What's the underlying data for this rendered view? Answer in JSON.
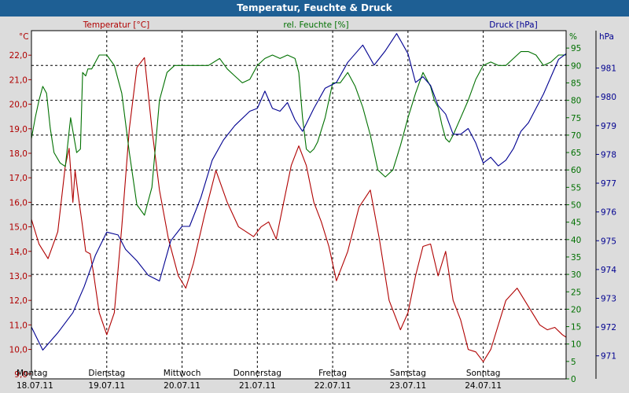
{
  "window_title": "Temperatur, Feuchte & Druck",
  "chart_data": {
    "type": "line",
    "title": "Temperatur, Feuchte & Druck",
    "x_range": [
      0,
      7.1
    ],
    "x_unit": "days",
    "x_ticks": [
      {
        "x": 0,
        "day": "Montag",
        "date": "18.07.11"
      },
      {
        "x": 1,
        "day": "Dienstag",
        "date": "19.07.11"
      },
      {
        "x": 2,
        "day": "Mittwoch",
        "date": "20.07.11"
      },
      {
        "x": 3,
        "day": "Donnerstag",
        "date": "21.07.11"
      },
      {
        "x": 4,
        "day": "Freitag",
        "date": "22.07.11"
      },
      {
        "x": 5,
        "day": "Samstag",
        "date": "23.07.11"
      },
      {
        "x": 6,
        "day": "Sonntag",
        "date": "24.07.11"
      }
    ],
    "grid": true,
    "axes": {
      "temperature": {
        "label": "Temperatur [°C]",
        "unit": "°C",
        "min": 8.8,
        "max": 23.0,
        "ticks": [
          "9,0",
          "10,0",
          "11,0",
          "12,0",
          "13,0",
          "14,0",
          "15,0",
          "16,0",
          "17,0",
          "18,0",
          "19,0",
          "20,0",
          "21,0",
          "22,0"
        ],
        "color": "#b00000"
      },
      "humidity": {
        "label": "rel. Feuchte [%]",
        "unit": "%",
        "min": 0,
        "max": 100,
        "ticks": [
          "0",
          "5",
          "10",
          "15",
          "20",
          "25",
          "30",
          "35",
          "40",
          "45",
          "50",
          "55",
          "60",
          "65",
          "70",
          "75",
          "80",
          "85",
          "90",
          "95"
        ],
        "color": "#007000"
      },
      "pressure": {
        "label": "Druck [hPa]",
        "unit": "hPa",
        "min": 970.2,
        "max": 982.3,
        "ticks": [
          "971",
          "972",
          "973",
          "974",
          "975",
          "976",
          "977",
          "978",
          "979",
          "980",
          "981"
        ],
        "color": "#000090"
      }
    },
    "series": [
      {
        "axis": "temperature",
        "color": "#b00000",
        "x": [
          0,
          0.1,
          0.22,
          0.35,
          0.45,
          0.5,
          0.55,
          0.58,
          0.62,
          0.67,
          0.72,
          0.78,
          0.82,
          0.9,
          1.0,
          1.1,
          1.2,
          1.3,
          1.4,
          1.5,
          1.6,
          1.7,
          1.82,
          1.95,
          2.05,
          2.15,
          2.3,
          2.45,
          2.6,
          2.75,
          2.85,
          2.95,
          3.05,
          3.15,
          3.25,
          3.35,
          3.45,
          3.55,
          3.65,
          3.75,
          3.85,
          3.95,
          4.05,
          4.2,
          4.35,
          4.5,
          4.62,
          4.75,
          4.9,
          5.0,
          5.1,
          5.2,
          5.3,
          5.4,
          5.5,
          5.6,
          5.7,
          5.8,
          5.9,
          6.0,
          6.1,
          6.2,
          6.3,
          6.45,
          6.55,
          6.65,
          6.75,
          6.85,
          6.95,
          7.05,
          7.1
        ],
        "values": [
          15.3,
          14.3,
          13.7,
          14.8,
          17.5,
          18.2,
          16.0,
          17.3,
          16.3,
          15.2,
          14.0,
          13.9,
          13.2,
          11.5,
          10.6,
          11.5,
          15.0,
          19.0,
          21.5,
          21.9,
          19.0,
          16.5,
          14.5,
          13.0,
          12.5,
          13.5,
          15.5,
          17.3,
          16.0,
          15.0,
          14.8,
          14.6,
          15.0,
          15.2,
          14.5,
          16.0,
          17.5,
          18.3,
          17.5,
          16.0,
          15.2,
          14.2,
          12.8,
          14.0,
          15.8,
          16.5,
          14.5,
          12.0,
          10.8,
          11.5,
          13.0,
          14.2,
          14.3,
          13.0,
          14.0,
          12.0,
          11.2,
          10.0,
          9.9,
          9.5,
          10.0,
          11.0,
          12.0,
          12.5,
          12.0,
          11.5,
          11.0,
          10.8,
          10.9,
          10.6,
          10.5
        ]
      },
      {
        "axis": "humidity",
        "color": "#007000",
        "x": [
          0,
          0.05,
          0.1,
          0.15,
          0.2,
          0.25,
          0.3,
          0.38,
          0.45,
          0.52,
          0.56,
          0.6,
          0.65,
          0.68,
          0.72,
          0.75,
          0.8,
          0.9,
          1.0,
          1.1,
          1.2,
          1.3,
          1.4,
          1.5,
          1.6,
          1.7,
          1.8,
          1.9,
          2.0,
          2.1,
          2.2,
          2.35,
          2.5,
          2.6,
          2.7,
          2.8,
          2.9,
          3.0,
          3.1,
          3.2,
          3.3,
          3.4,
          3.5,
          3.55,
          3.6,
          3.65,
          3.7,
          3.75,
          3.8,
          3.9,
          4.0,
          4.1,
          4.2,
          4.3,
          4.4,
          4.5,
          4.55,
          4.6,
          4.7,
          4.8,
          4.9,
          5.0,
          5.1,
          5.2,
          5.3,
          5.35,
          5.4,
          5.45,
          5.5,
          5.55,
          5.6,
          5.7,
          5.8,
          5.9,
          6.0,
          6.1,
          6.2,
          6.3,
          6.4,
          6.5,
          6.6,
          6.7,
          6.8,
          6.9,
          7.0,
          7.1
        ],
        "values": [
          69,
          75,
          80,
          84,
          82,
          72,
          65,
          62,
          61,
          75,
          70,
          65,
          66,
          88,
          87,
          89,
          89,
          93,
          93,
          90,
          82,
          65,
          50,
          47,
          55,
          80,
          88,
          90,
          90,
          90,
          90,
          90,
          92,
          89,
          87,
          85,
          86,
          90,
          92,
          93,
          92,
          93,
          92,
          88,
          75,
          66,
          65,
          66,
          68,
          75,
          85,
          85,
          88,
          84,
          78,
          70,
          65,
          60,
          58,
          60,
          67,
          75,
          82,
          88,
          84,
          80,
          78,
          73,
          69,
          68,
          70,
          75,
          80,
          86,
          90,
          91,
          90,
          90,
          92,
          94,
          94,
          93,
          90,
          91,
          93,
          93
        ]
      },
      {
        "axis": "pressure",
        "color": "#000090",
        "x": [
          0,
          0.15,
          0.35,
          0.55,
          0.7,
          0.85,
          1.0,
          1.15,
          1.25,
          1.4,
          1.55,
          1.7,
          1.85,
          2.0,
          2.1,
          2.25,
          2.4,
          2.55,
          2.7,
          2.9,
          3.0,
          3.1,
          3.2,
          3.3,
          3.4,
          3.5,
          3.6,
          3.75,
          3.9,
          4.05,
          4.2,
          4.4,
          4.55,
          4.7,
          4.85,
          5.0,
          5.1,
          5.2,
          5.3,
          5.4,
          5.5,
          5.6,
          5.7,
          5.8,
          5.9,
          6.0,
          6.1,
          6.2,
          6.3,
          6.4,
          6.5,
          6.6,
          6.7,
          6.8,
          6.9,
          7.0,
          7.1
        ],
        "values": [
          972.0,
          971.2,
          971.8,
          972.5,
          973.4,
          974.5,
          975.3,
          975.2,
          974.7,
          974.3,
          973.8,
          973.6,
          975.0,
          975.5,
          975.5,
          976.5,
          977.8,
          978.5,
          979.0,
          979.5,
          979.6,
          980.2,
          979.6,
          979.5,
          979.8,
          979.2,
          978.8,
          979.6,
          980.3,
          980.5,
          981.2,
          981.8,
          981.1,
          981.6,
          982.2,
          981.5,
          980.5,
          980.7,
          980.4,
          979.7,
          979.4,
          978.7,
          978.7,
          978.9,
          978.4,
          977.7,
          977.9,
          977.6,
          977.8,
          978.2,
          978.8,
          979.1,
          979.6,
          980.1,
          980.7,
          981.3,
          981.5
        ]
      }
    ]
  }
}
